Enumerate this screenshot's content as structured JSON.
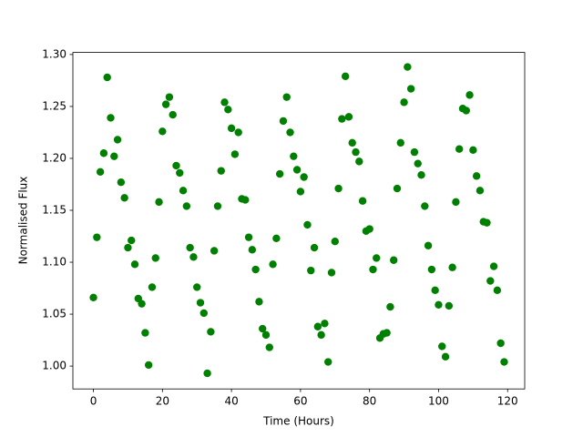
{
  "chart_data": {
    "type": "scatter",
    "x_label": "Time (Hours)",
    "y_label": "Normalised Flux",
    "x": [
      0,
      1,
      2,
      3,
      4,
      5,
      6,
      7,
      8,
      9,
      10,
      11,
      12,
      13,
      14,
      15,
      16,
      17,
      18,
      19,
      20,
      21,
      22,
      23,
      24,
      25,
      26,
      27,
      28,
      29,
      30,
      31,
      32,
      33,
      34,
      35,
      36,
      37,
      38,
      39,
      40,
      41,
      42,
      43,
      44,
      45,
      46,
      47,
      48,
      49,
      50,
      51,
      52,
      53,
      54,
      55,
      56,
      57,
      58,
      59,
      60,
      61,
      62,
      63,
      64,
      65,
      66,
      67,
      68,
      69,
      70,
      71,
      72,
      73,
      74,
      75,
      76,
      77,
      78,
      79,
      80,
      81,
      82,
      83,
      84,
      85,
      86,
      87,
      88,
      89,
      90,
      91,
      92,
      93,
      94,
      95,
      96,
      97,
      98,
      99,
      100,
      101,
      102,
      103,
      104,
      105,
      106,
      107,
      108,
      109,
      110,
      111,
      112,
      113,
      114,
      115,
      116,
      117,
      118,
      119
    ],
    "series": [
      {
        "color": "#008000",
        "values": [
          1.066,
          1.124,
          1.187,
          1.205,
          1.278,
          1.239,
          1.202,
          1.218,
          1.177,
          1.162,
          1.114,
          1.121,
          1.098,
          1.065,
          1.06,
          1.032,
          1.001,
          1.076,
          1.104,
          1.158,
          1.226,
          1.252,
          1.259,
          1.242,
          1.193,
          1.186,
          1.169,
          1.154,
          1.114,
          1.105,
          1.076,
          1.061,
          1.051,
          0.993,
          1.033,
          1.111,
          1.154,
          1.188,
          1.254,
          1.247,
          1.229,
          1.204,
          1.225,
          1.161,
          1.16,
          1.124,
          1.112,
          1.093,
          1.062,
          1.036,
          1.03,
          1.018,
          1.098,
          1.123,
          1.185,
          1.236,
          1.259,
          1.225,
          1.202,
          1.189,
          1.168,
          1.182,
          1.136,
          1.092,
          1.114,
          1.038,
          1.03,
          1.041,
          1.004,
          1.09,
          1.12,
          1.171,
          1.238,
          1.279,
          1.24,
          1.215,
          1.206,
          1.197,
          1.159,
          1.13,
          1.132,
          1.093,
          1.104,
          1.027,
          1.031,
          1.032,
          1.057,
          1.102,
          1.171,
          1.215,
          1.254,
          1.288,
          1.267,
          1.206,
          1.195,
          1.184,
          1.154,
          1.116,
          1.093,
          1.073,
          1.059,
          1.019,
          1.009,
          1.058,
          1.095,
          1.158,
          1.209,
          1.248,
          1.246,
          1.261,
          1.208,
          1.183,
          1.169,
          1.139,
          1.138,
          1.082,
          1.096,
          1.073,
          1.022,
          1.004
        ]
      }
    ],
    "xlim": [
      -5.95,
      124.95
    ],
    "ylim": [
      0.978,
      1.302
    ],
    "xticks": [
      0,
      20,
      40,
      60,
      80,
      100,
      120
    ],
    "yticks": [
      {
        "value": 1.0,
        "label": "1.00"
      },
      {
        "value": 1.05,
        "label": "1.05"
      },
      {
        "value": 1.1,
        "label": "1.10"
      },
      {
        "value": 1.15,
        "label": "1.15"
      },
      {
        "value": 1.2,
        "label": "1.20"
      },
      {
        "value": 1.25,
        "label": "1.25"
      },
      {
        "value": 1.3,
        "label": "1.30"
      }
    ]
  }
}
